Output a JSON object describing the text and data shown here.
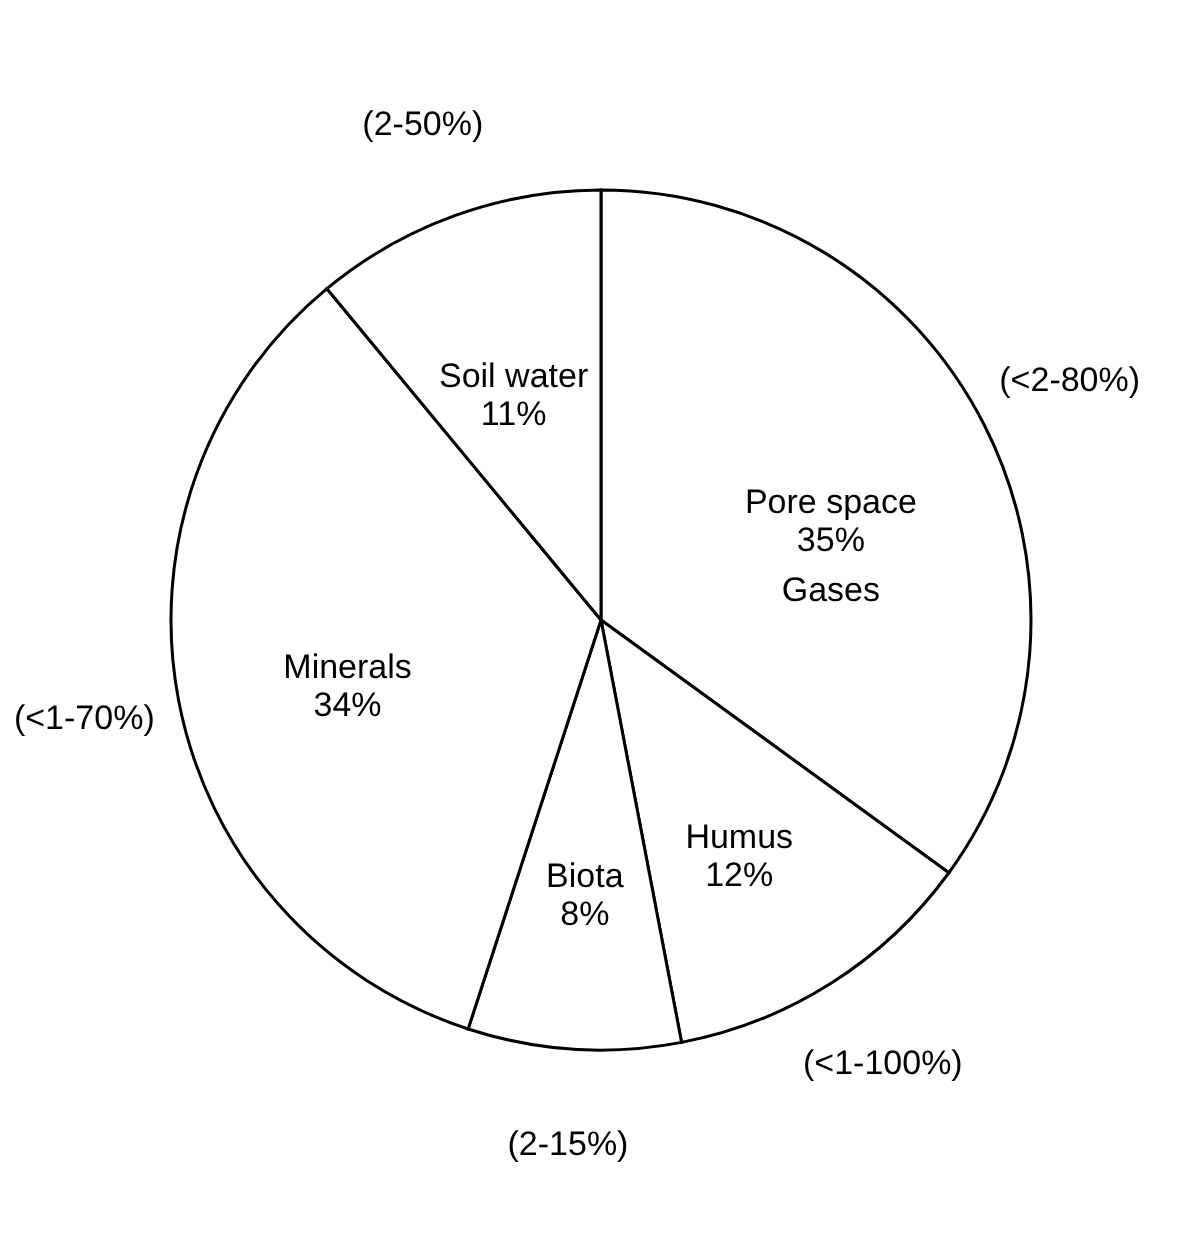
{
  "chart_data": {
    "type": "pie",
    "categories": [
      "Pore space",
      "Humus",
      "Biota",
      "Minerals",
      "Soil water"
    ],
    "values": [
      35,
      12,
      8,
      34,
      11
    ],
    "value_labels": [
      "35%",
      "12%",
      "8%",
      "34%",
      "11%"
    ],
    "colors": [
      "#ffffff",
      "#ffffff",
      "#ffffff",
      "#ffffff",
      "#ffffff"
    ],
    "annotations": [
      "Gases",
      "(<2-80%)",
      "(<1-100%)",
      "(2-15%)",
      "(<1-70%)",
      "(2-50%)"
    ]
  }
}
